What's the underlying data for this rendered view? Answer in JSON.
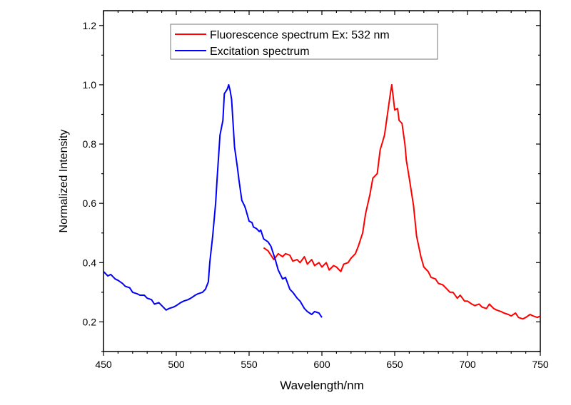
{
  "chart_data": {
    "type": "line",
    "title": "",
    "xlabel": "Wavelength/nm",
    "ylabel": "Normalized Intensity",
    "xlim": [
      450,
      750
    ],
    "ylim": [
      0.1,
      1.25
    ],
    "x_ticks": [
      450,
      500,
      550,
      600,
      650,
      700,
      750
    ],
    "y_ticks": [
      0.2,
      0.4,
      0.6,
      0.8,
      1.0,
      1.2
    ],
    "x_tick_labels": [
      "450",
      "500",
      "550",
      "600",
      "650",
      "700",
      "750"
    ],
    "y_tick_labels": [
      "0.2",
      "0.4",
      "0.6",
      "0.8",
      "1.0",
      "1.2"
    ],
    "grid": false,
    "legend_position": "top-center",
    "series": [
      {
        "name": "Fluorescence spectrum Ex: 532 nm",
        "color": "#ff0000",
        "x": [
          560,
          563,
          565,
          567,
          570,
          573,
          575,
          578,
          580,
          583,
          585,
          588,
          590,
          593,
          595,
          598,
          600,
          603,
          605,
          608,
          610,
          613,
          615,
          618,
          620,
          623,
          625,
          628,
          630,
          633,
          635,
          638,
          640,
          643,
          645,
          647,
          648,
          650,
          652,
          653,
          655,
          657,
          658,
          660,
          663,
          665,
          668,
          670,
          673,
          675,
          678,
          680,
          683,
          685,
          688,
          690,
          693,
          695,
          698,
          700,
          703,
          705,
          708,
          710,
          713,
          715,
          718,
          720,
          723,
          725,
          728,
          730,
          733,
          735,
          738,
          740,
          743,
          745,
          748,
          750
        ],
        "y": [
          0.45,
          0.44,
          0.425,
          0.41,
          0.43,
          0.42,
          0.43,
          0.425,
          0.405,
          0.41,
          0.4,
          0.42,
          0.395,
          0.41,
          0.39,
          0.4,
          0.385,
          0.4,
          0.375,
          0.39,
          0.385,
          0.37,
          0.395,
          0.4,
          0.415,
          0.43,
          0.455,
          0.5,
          0.565,
          0.63,
          0.685,
          0.7,
          0.78,
          0.83,
          0.9,
          0.97,
          1.0,
          0.915,
          0.92,
          0.88,
          0.87,
          0.8,
          0.745,
          0.685,
          0.59,
          0.49,
          0.42,
          0.385,
          0.37,
          0.35,
          0.345,
          0.33,
          0.325,
          0.315,
          0.3,
          0.3,
          0.28,
          0.29,
          0.27,
          0.27,
          0.26,
          0.255,
          0.26,
          0.25,
          0.245,
          0.26,
          0.245,
          0.24,
          0.235,
          0.23,
          0.225,
          0.22,
          0.23,
          0.215,
          0.21,
          0.215,
          0.225,
          0.22,
          0.215,
          0.22
        ]
      },
      {
        "name": "Excitation spectrum",
        "color": "#0000ff",
        "x": [
          450,
          453,
          455,
          458,
          460,
          463,
          465,
          468,
          470,
          473,
          475,
          478,
          480,
          483,
          485,
          488,
          490,
          493,
          495,
          498,
          500,
          503,
          505,
          508,
          510,
          513,
          515,
          518,
          520,
          522,
          523,
          525,
          527,
          528,
          530,
          532,
          533,
          535,
          536,
          537,
          538,
          540,
          542,
          543,
          545,
          547,
          548,
          550,
          552,
          553,
          555,
          557,
          558,
          560,
          563,
          565,
          568,
          570,
          573,
          575,
          578,
          580,
          583,
          585,
          588,
          590,
          593,
          595,
          598,
          600
        ],
        "y": [
          0.37,
          0.355,
          0.36,
          0.345,
          0.34,
          0.33,
          0.32,
          0.315,
          0.3,
          0.295,
          0.29,
          0.29,
          0.28,
          0.275,
          0.26,
          0.265,
          0.255,
          0.24,
          0.245,
          0.25,
          0.255,
          0.265,
          0.27,
          0.275,
          0.28,
          0.29,
          0.295,
          0.3,
          0.31,
          0.335,
          0.4,
          0.49,
          0.6,
          0.68,
          0.83,
          0.88,
          0.97,
          0.985,
          1.0,
          0.98,
          0.95,
          0.79,
          0.72,
          0.68,
          0.61,
          0.59,
          0.575,
          0.54,
          0.535,
          0.52,
          0.515,
          0.505,
          0.51,
          0.48,
          0.47,
          0.455,
          0.41,
          0.375,
          0.345,
          0.35,
          0.31,
          0.3,
          0.28,
          0.27,
          0.245,
          0.235,
          0.225,
          0.235,
          0.23,
          0.215
        ]
      }
    ]
  }
}
